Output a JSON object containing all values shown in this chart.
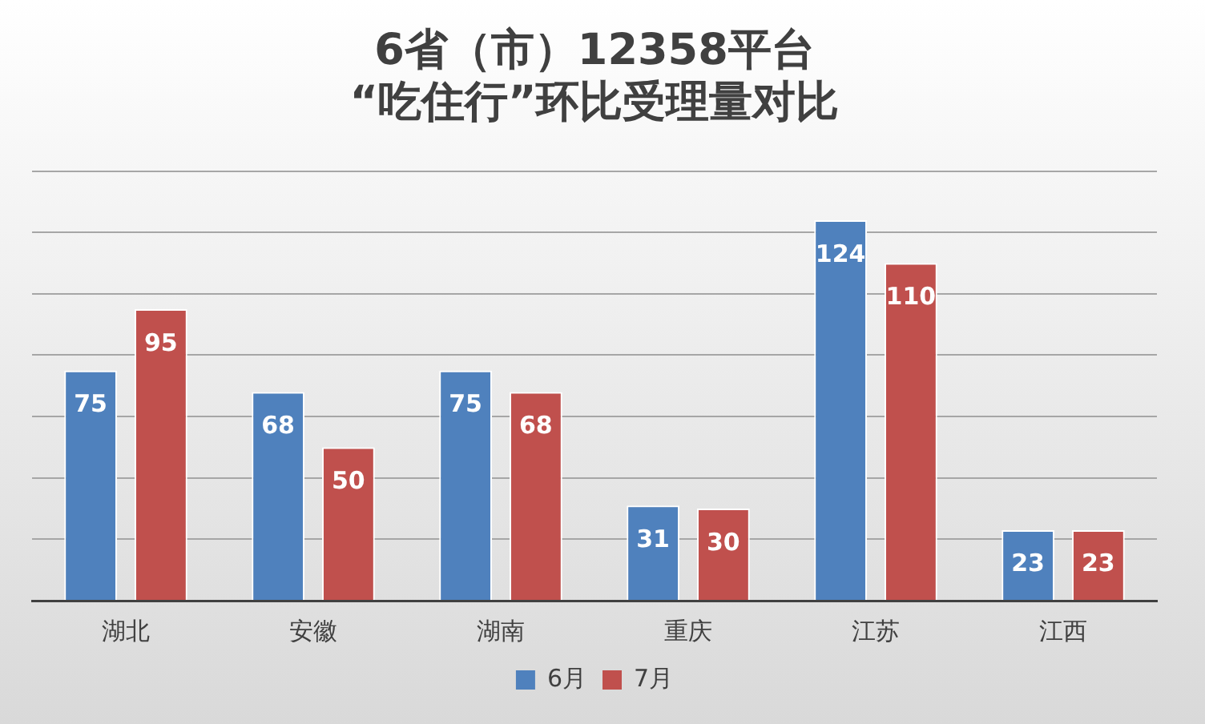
{
  "chart_data": {
    "type": "bar",
    "title": "6省（市）12358平台\n“吃住行”环比受理量对比",
    "categories": [
      "湖北",
      "安徽",
      "湖南",
      "重庆",
      "江苏",
      "江西"
    ],
    "series": [
      {
        "name": "6月",
        "color": "#4f81bd",
        "values": [
          75,
          68,
          75,
          31,
          124,
          23
        ]
      },
      {
        "name": "7月",
        "color": "#c0504d",
        "values": [
          95,
          50,
          68,
          30,
          110,
          23
        ]
      }
    ],
    "ylim": [
      0,
      140
    ],
    "yticks": [
      {
        "value": 0,
        "label": null
      },
      {
        "value": 20,
        "label": null
      },
      {
        "value": 40,
        "label": null
      },
      {
        "value": 60,
        "label": null
      },
      {
        "value": 80,
        "label": null
      },
      {
        "value": 100,
        "label": null
      },
      {
        "value": 120,
        "label": null
      },
      {
        "value": 140,
        "label": null
      }
    ],
    "tick_labels": "x",
    "grid": "y",
    "legend": "bottom",
    "data_labels": true
  }
}
